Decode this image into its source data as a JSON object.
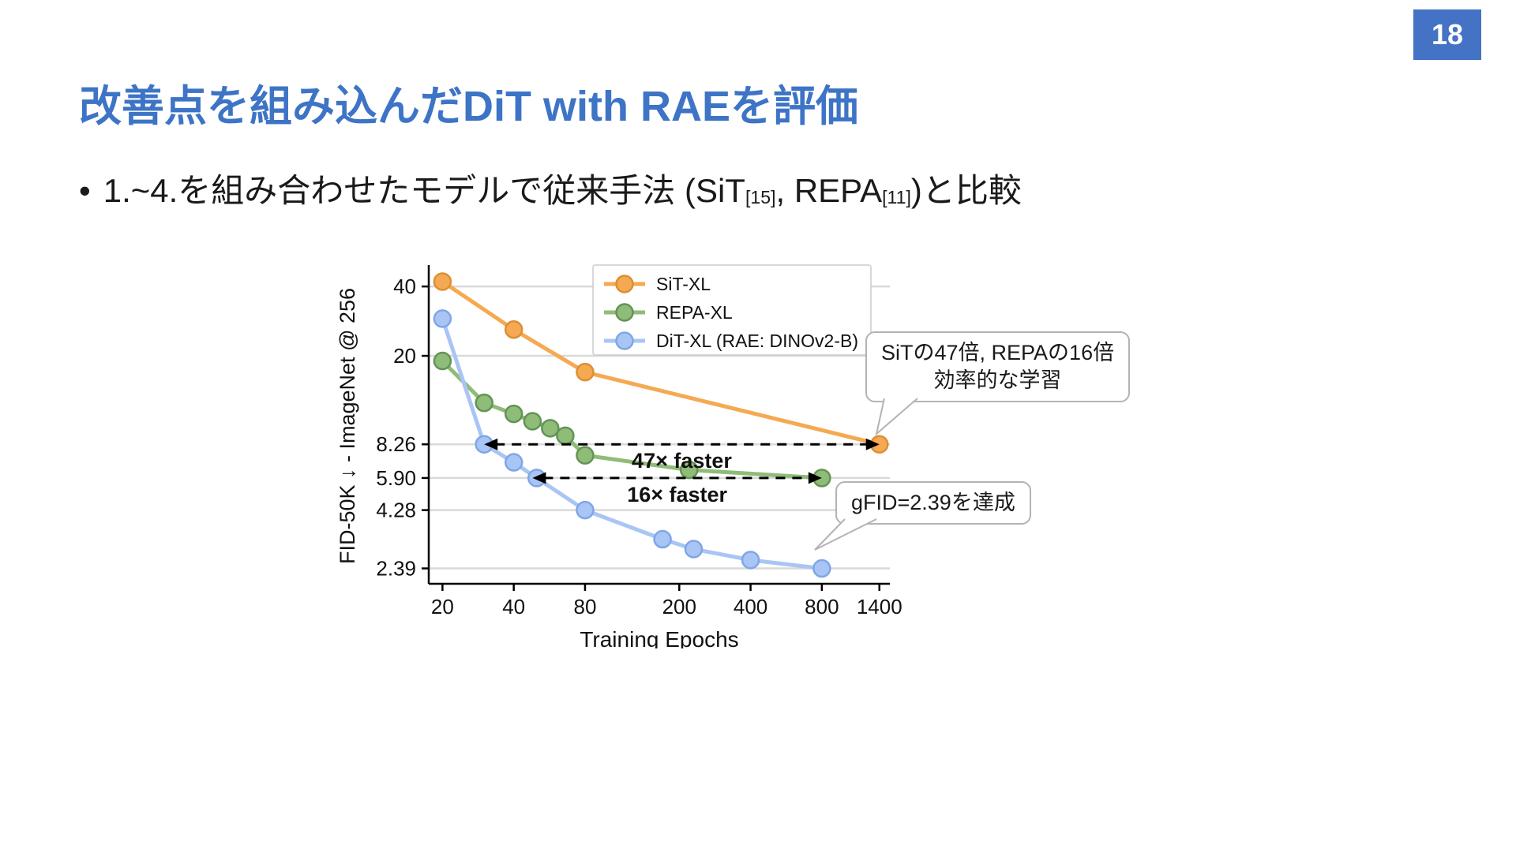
{
  "slide": {
    "page_number": "18",
    "title": "改善点を組み込んだDiT with RAEを評価",
    "bullet": {
      "marker": "•",
      "prefix": "1.~4.を組み合わせたモデルで従来手法 (SiT",
      "cite1": "[15]",
      "mid": ", REPA",
      "cite2": "[11]",
      "suffix": ")と比較"
    },
    "callouts": [
      {
        "lines": [
          "SiTの47倍, REPAの16倍",
          "効率的な学習"
        ]
      },
      {
        "lines": [
          "gFID=2.39を達成"
        ]
      }
    ]
  },
  "colors": {
    "accent": "#4472C4",
    "title": "#3D74C6",
    "grid": "#D9D9D9",
    "callout_border": "#B3B3B3"
  },
  "chart_data": {
    "type": "line",
    "title": "",
    "xlabel": "Training Epochs",
    "ylabel": "FID-50K ↓ - ImageNet @ 256",
    "x_scale": "log",
    "y_scale": "log",
    "xlim": [
      17.5,
      1550
    ],
    "ylim": [
      2.05,
      48
    ],
    "grid": "horizontal",
    "legend_position": "upper center inside",
    "x_ticks": [
      {
        "value": 20,
        "label": "20"
      },
      {
        "value": 40,
        "label": "40"
      },
      {
        "value": 80,
        "label": "80"
      },
      {
        "value": 200,
        "label": "200"
      },
      {
        "value": 400,
        "label": "400"
      },
      {
        "value": 800,
        "label": "800"
      },
      {
        "value": 1400,
        "label": "1400"
      }
    ],
    "y_ticks": [
      {
        "value": 40,
        "label": "40"
      },
      {
        "value": 20,
        "label": "20"
      },
      {
        "value": 8.26,
        "label": "8.26"
      },
      {
        "value": 5.9,
        "label": "5.90"
      },
      {
        "value": 4.28,
        "label": "4.28"
      },
      {
        "value": 2.39,
        "label": "2.39"
      }
    ],
    "series": [
      {
        "name": "SiT-XL",
        "color": "#F5A952",
        "marker_edge": "#DD8F33",
        "points": [
          [
            20,
            42
          ],
          [
            40,
            26
          ],
          [
            80,
            17
          ],
          [
            1400,
            8.26
          ]
        ]
      },
      {
        "name": "REPA-XL",
        "color": "#8FBC78",
        "marker_edge": "#639356",
        "points": [
          [
            20,
            19
          ],
          [
            30,
            12.5
          ],
          [
            40,
            11.2
          ],
          [
            48,
            10.4
          ],
          [
            57,
            9.7
          ],
          [
            66,
            9.0
          ],
          [
            80,
            7.4
          ],
          [
            220,
            6.4
          ],
          [
            800,
            5.9
          ]
        ]
      },
      {
        "name": "DiT-XL (RAE: DINOv2-B)",
        "color": "#A9C5F5",
        "marker_edge": "#7FA6E6",
        "points": [
          [
            20,
            29
          ],
          [
            30,
            8.26
          ],
          [
            40,
            6.9
          ],
          [
            50,
            5.9
          ],
          [
            80,
            4.28
          ],
          [
            170,
            3.2
          ],
          [
            230,
            2.9
          ],
          [
            400,
            2.6
          ],
          [
            800,
            2.39
          ]
        ]
      }
    ],
    "annotations": [
      {
        "type": "double_arrow",
        "y": 8.26,
        "x_start": 30,
        "x_end": 1400,
        "label": "47× faster"
      },
      {
        "type": "double_arrow",
        "y": 5.9,
        "x_start": 48,
        "x_end": 800,
        "label": "16× faster"
      }
    ]
  }
}
